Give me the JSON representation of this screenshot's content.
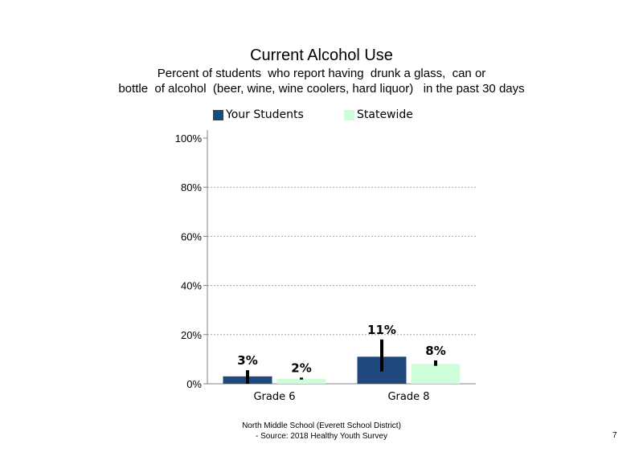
{
  "title": "Current  Alcohol Use",
  "subtitle_line1": "Percent of students  who report having  drunk a glass,  can or",
  "subtitle_line2": "bottle  of alcohol  (beer, wine, wine coolers, hard liquor)   in the past 30 days",
  "footer_line1": "North  Middle  School  (Everett School District)",
  "footer_line2": "- Source: 2018 Healthy  Youth Survey",
  "page_number": "7",
  "colors": {
    "your_students": "#1f497d",
    "statewide": "#ccffd9",
    "error_bar": "#000000",
    "gridline": "#a6a6a6",
    "axis": "#808080"
  },
  "chart_data": {
    "type": "bar",
    "categories": [
      "Grade 6",
      "Grade 8"
    ],
    "series": [
      {
        "name": "Your Students",
        "values": [
          3,
          11
        ],
        "labels": [
          "3%",
          "11%"
        ],
        "error_low": [
          0,
          5
        ],
        "error_high": [
          5.5,
          18
        ]
      },
      {
        "name": "Statewide",
        "values": [
          2,
          8
        ],
        "labels": [
          "2%",
          "8%"
        ],
        "error_low": [
          1.7,
          7.3
        ],
        "error_high": [
          2.5,
          9.5
        ]
      }
    ],
    "ylim": [
      0,
      100
    ],
    "yticks": [
      "0%",
      "20%",
      "40%",
      "60%",
      "80%",
      "100%"
    ],
    "ytick_values": [
      0,
      20,
      40,
      60,
      80,
      100
    ],
    "grid": true,
    "legend_position": "top"
  }
}
